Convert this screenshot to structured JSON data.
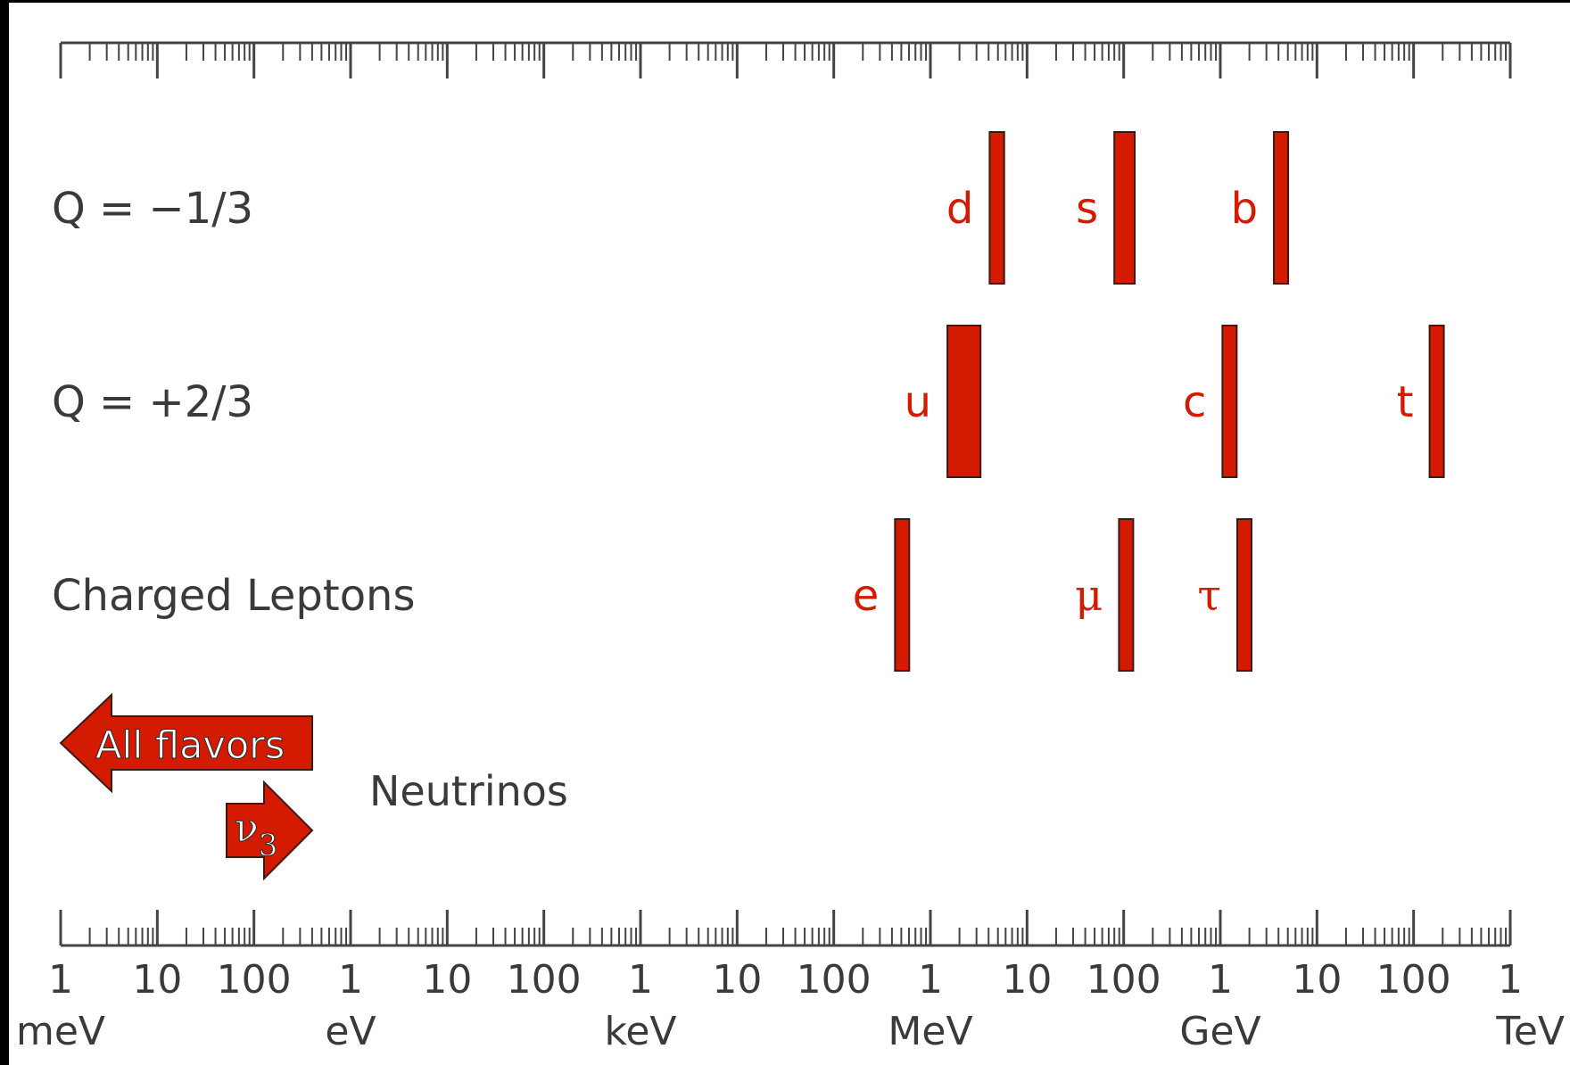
{
  "colors": {
    "background": "#ffffff",
    "frame": "#000000",
    "text": "#3a3a3a",
    "axis": "#444444",
    "accent": "#d41a00",
    "accent_edge": "#3b1a12"
  },
  "rows": [
    {
      "label": "Q = −1/3",
      "particles": [
        {
          "symbol": "d",
          "mass_eV_min": 4100000.0,
          "mass_eV_max": 5800000.0
        },
        {
          "symbol": "s",
          "mass_eV_min": 80000000.0,
          "mass_eV_max": 130000000.0
        },
        {
          "symbol": "b",
          "mass_eV_min": 4100000000.0,
          "mass_eV_max": 4400000000.0
        }
      ]
    },
    {
      "label": "Q = +2/3",
      "particles": [
        {
          "symbol": "u",
          "mass_eV_min": 1500000.0,
          "mass_eV_max": 3300000.0
        },
        {
          "symbol": "c",
          "mass_eV_min": 1160000000.0,
          "mass_eV_max": 1340000000.0
        },
        {
          "symbol": "t",
          "mass_eV_min": 169000000000.0,
          "mass_eV_max": 178000000000.0
        }
      ]
    },
    {
      "label": "Charged Leptons",
      "particles": [
        {
          "symbol": "e",
          "mass_eV_min": 500000.0,
          "mass_eV_max": 520000.0
        },
        {
          "symbol": "μ",
          "mass_eV_min": 103000000.0,
          "mass_eV_max": 109000000.0
        },
        {
          "symbol": "τ",
          "mass_eV_min": 1750000000.0,
          "mass_eV_max": 1800000000.0
        }
      ]
    }
  ],
  "neutrinos": {
    "label": "Neutrinos",
    "all_flavors_label": "All flavors",
    "nu3_symbol": "ν",
    "nu3_subscript": "3"
  },
  "axis": {
    "min_eV": 0.001,
    "max_eV": 1000000000000.0,
    "scale": "log",
    "tick_labels": [
      "1",
      "10",
      "100",
      "1",
      "10",
      "100",
      "1",
      "10",
      "100",
      "1",
      "10",
      "100",
      "1",
      "10",
      "100",
      "1"
    ],
    "unit_labels": [
      "meV",
      "eV",
      "keV",
      "MeV",
      "GeV",
      "TeV"
    ]
  }
}
